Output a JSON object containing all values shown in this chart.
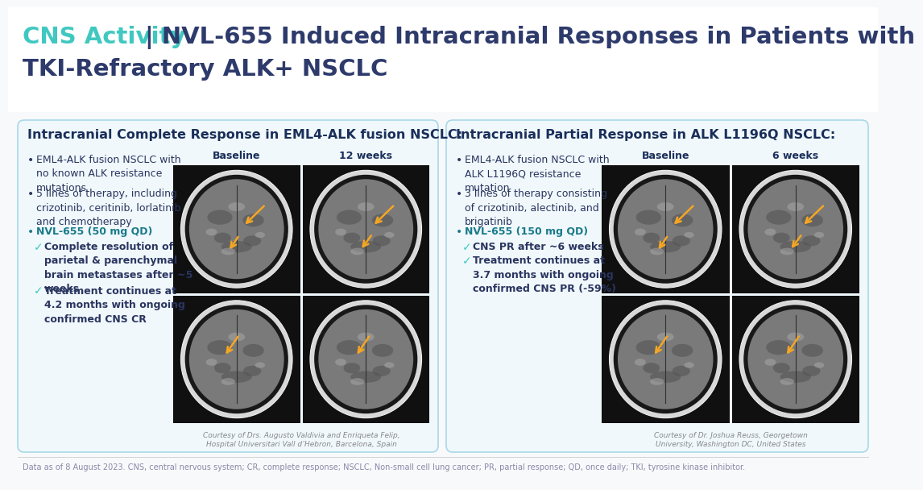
{
  "bg_color": "#f8f9fa",
  "title_cns": "CNS Activity",
  "title_rest": "| NVL-655 Induced Intracranial Responses in Patients with\nTKI-Refractory ALK+ NSCLC",
  "title_cns_color": "#40c8c0",
  "title_rest_color": "#2d3a6b",
  "title_fontsize": 21,
  "card_bg": "#f0f8fb",
  "card_border": "#a8d8e8",
  "card1_header": "Intracranial Complete Response in EML4-ALK fusion NSCLC:",
  "card2_header": "Intracranial Partial Response in ALK L1196Q NSCLC:",
  "header_color": "#1a2e5a",
  "header_fontsize": 11.5,
  "bullet_color": "#2a3560",
  "bullet_fontsize": 9,
  "nvl_color": "#1a7a8a",
  "check_color": "#40c8c0",
  "card1_bullets": [
    "EML4-ALK fusion NSCLC with\nno known ALK resistance\nmutations",
    "5 lines of therapy, including\ncrizotinib, ceritinib, lorlatinib\nand chemotherapy"
  ],
  "card1_nvl": "NVL-655 (50 mg QD)",
  "card1_checks": [
    "Complete resolution of\nparietal & parenchymal\nbrain metastases after ~5\nweeks",
    "Treatment continues at\n4.2 months with ongoing\nconfirmed CNS CR"
  ],
  "card2_bullets": [
    "EML4-ALK fusion NSCLC with\nALK L1196Q resistance\nmutation",
    "3 lines of therapy consisting\nof crizotinib, alectinib, and\nbrigatinib"
  ],
  "card2_nvl": "NVL-655 (150 mg QD)",
  "card2_checks": [
    "CNS PR after ~6 weeks",
    "Treatment continues at\n3.7 months with ongoing\nconfirmed CNS PR (-59%)"
  ],
  "card1_img_labels": [
    "Baseline",
    "12 weeks"
  ],
  "card2_img_labels": [
    "Baseline",
    "6 weeks"
  ],
  "img_label_color": "#1a2e5a",
  "img_label_fontsize": 9,
  "card1_courtesy": "Courtesy of Drs. Augusto Valdivia and Enriqueta Felip,\nHospital Universitari Vall d’Hebron, Barcelona, Spain",
  "card2_courtesy": "Courtesy of Dr. Joshua Reuss, Georgetown\nUniversity, Washington DC, United States",
  "courtesy_color": "#888888",
  "courtesy_fontsize": 6.5,
  "footnote": "Data as of 8 August 2023. CNS, central nervous system; CR, complete response; NSCLC, Non-small cell lung cancer; PR, partial response; QD, once daily; TKI, tyrosine kinase inhibitor.",
  "footnote_color": "#8888aa",
  "footnote_fontsize": 7,
  "arrow_color": "#f5a623",
  "title_bg": "#ffffff"
}
